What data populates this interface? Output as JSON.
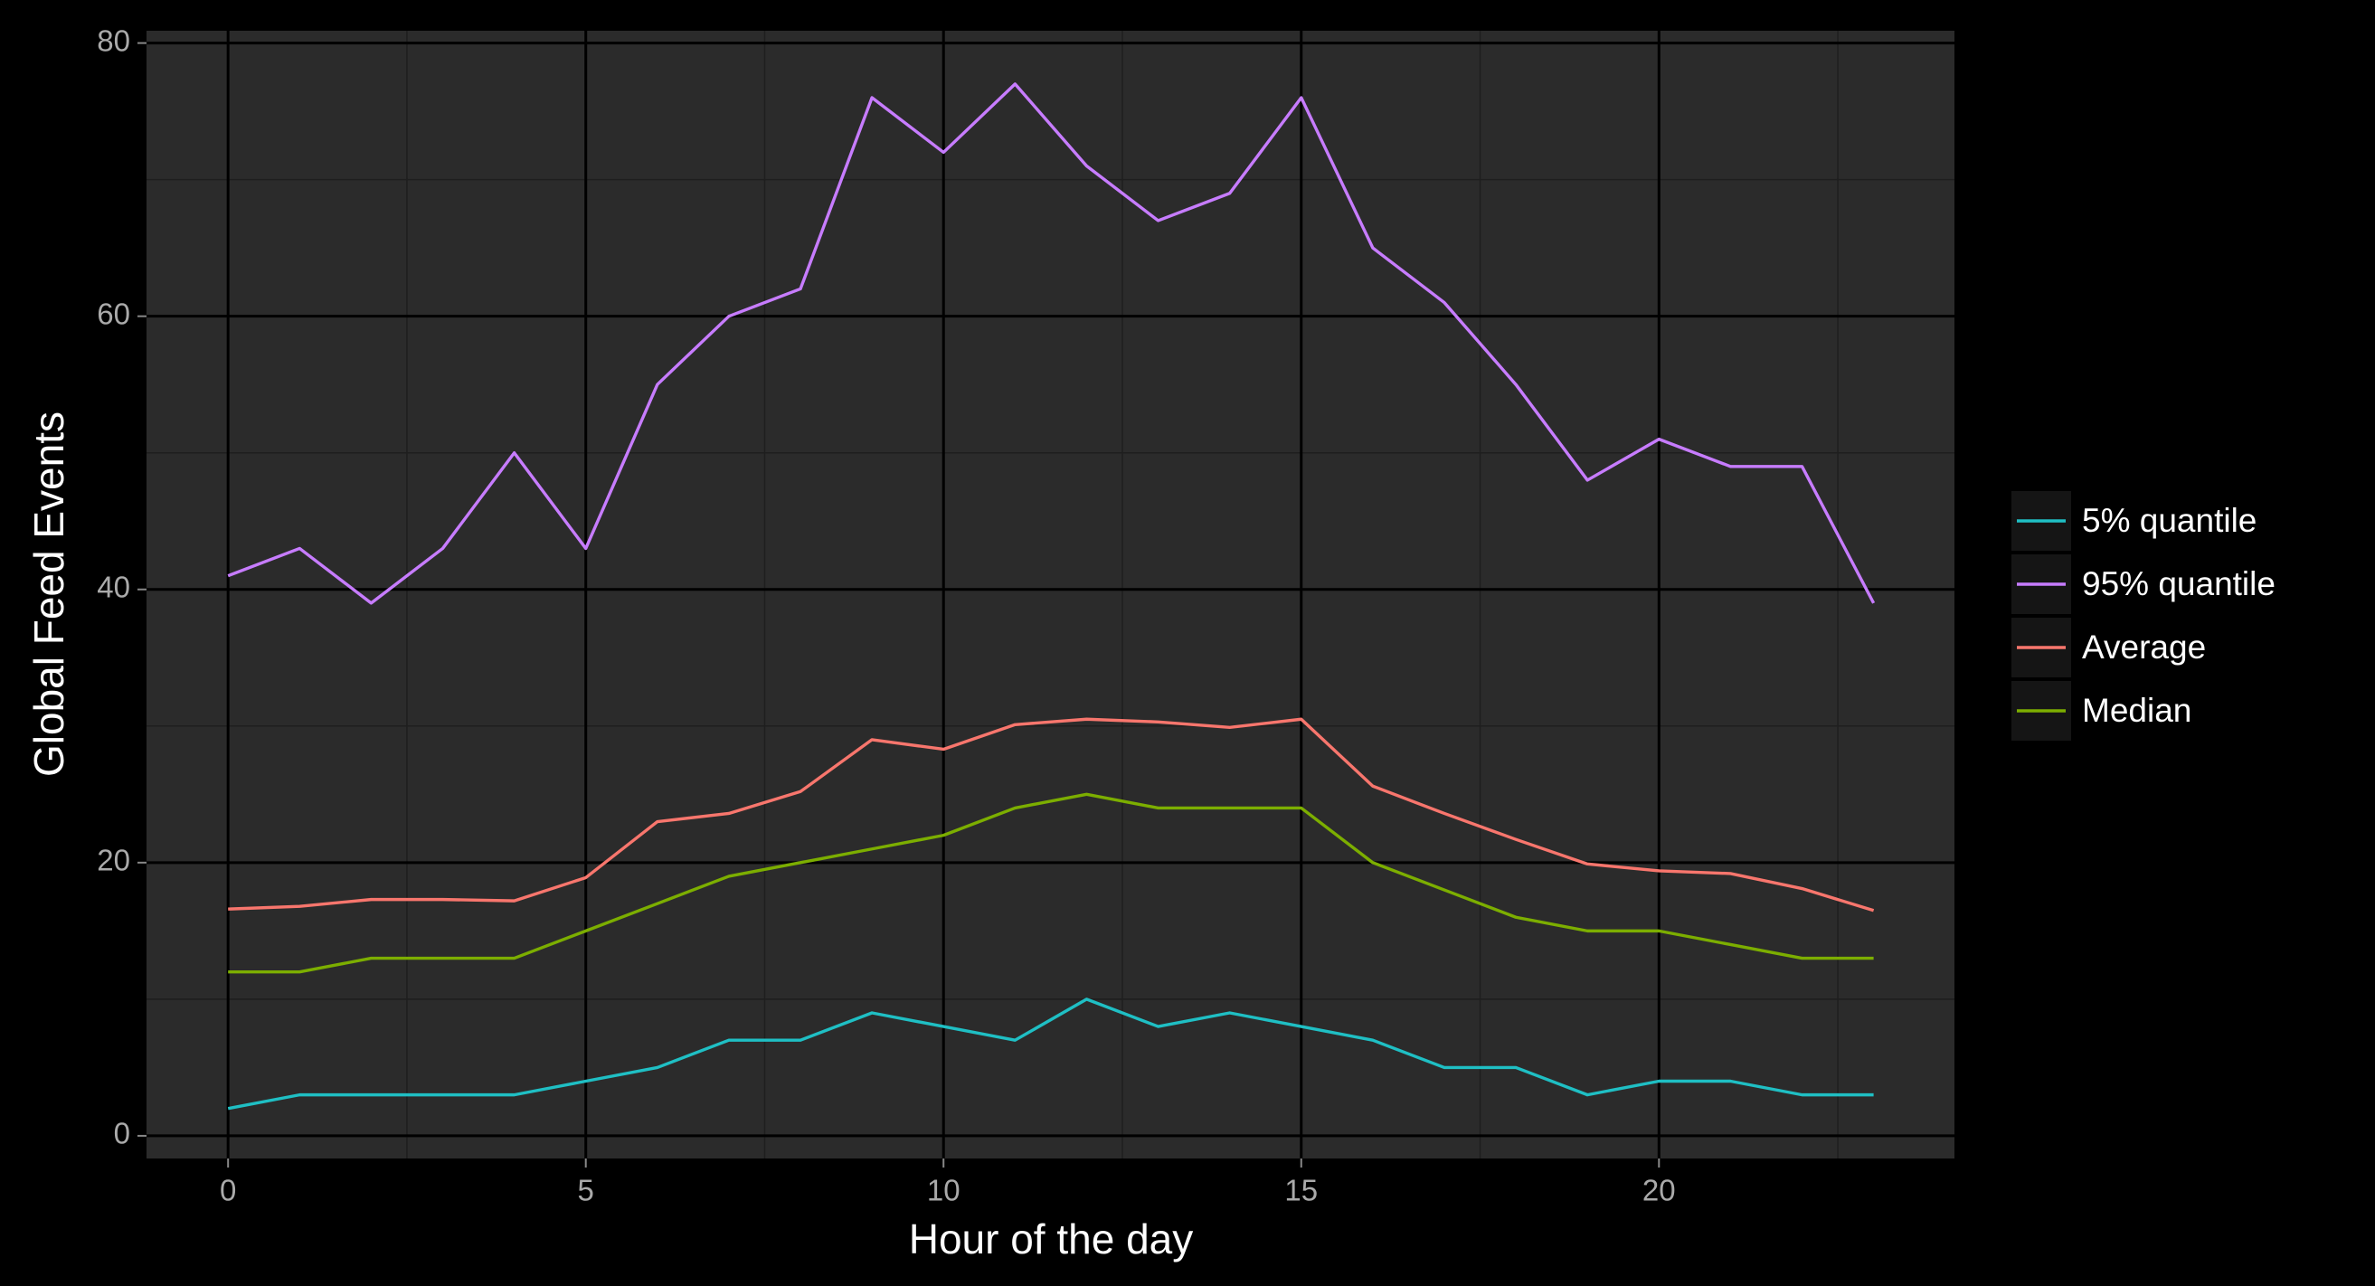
{
  "chart_data": {
    "type": "line",
    "x_label": "Hour of the day",
    "y_label": "Global Feed Events",
    "x": [
      0,
      1,
      2,
      3,
      4,
      5,
      6,
      7,
      8,
      9,
      10,
      11,
      12,
      13,
      14,
      15,
      16,
      17,
      18,
      19,
      20,
      21,
      22,
      23
    ],
    "series": [
      {
        "name": "5% quantile",
        "color": "#1fbfc4",
        "values": [
          2,
          3,
          3,
          3,
          3,
          4,
          5,
          7,
          7,
          9,
          8,
          7,
          10,
          8,
          9,
          8,
          7,
          5,
          5,
          3,
          4,
          4,
          3,
          3
        ]
      },
      {
        "name": "95% quantile",
        "color": "#c77cff",
        "values": [
          41,
          43,
          39,
          43,
          50,
          43,
          55,
          60,
          62,
          76,
          72,
          77,
          71,
          67,
          69,
          76,
          65,
          61,
          55,
          48,
          51,
          49,
          49,
          39
        ]
      },
      {
        "name": "Average",
        "color": "#f8766d",
        "values": [
          16.6,
          16.8,
          17.3,
          17.3,
          17.2,
          18.9,
          23,
          23.6,
          25.2,
          29,
          28.3,
          30.1,
          30.5,
          30.3,
          29.9,
          30.5,
          25.6,
          23.6,
          21.7,
          19.9,
          19.4,
          19.2,
          18.1,
          16.5
        ]
      },
      {
        "name": "Median",
        "color": "#7cae00",
        "values": [
          12,
          12,
          13,
          13,
          13,
          15,
          17,
          19,
          20,
          21,
          22,
          24,
          25,
          24,
          24,
          24,
          20,
          18,
          16,
          15,
          15,
          14,
          13,
          13
        ]
      }
    ],
    "xlim": [
      -1.14,
      24.13
    ],
    "ylim": [
      -1.66,
      80.9
    ],
    "xticks": [
      0,
      5,
      10,
      15,
      20
    ],
    "yticks": [
      0,
      20,
      40,
      60,
      80
    ],
    "grid": true
  }
}
